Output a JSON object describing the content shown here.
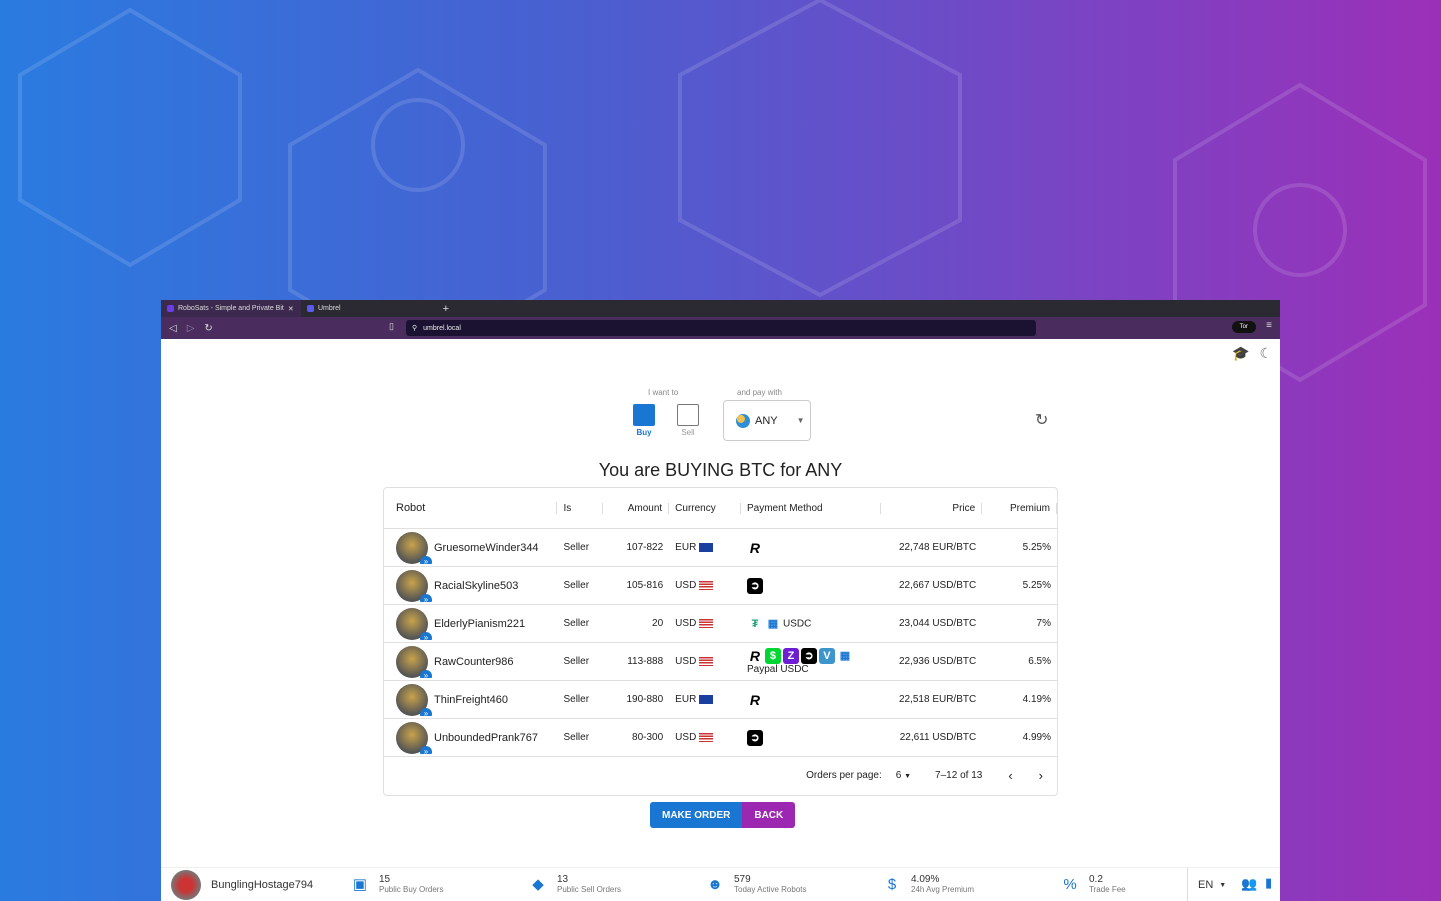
{
  "browser": {
    "tabs": [
      {
        "label": "RoboSats - Simple and Private Bit"
      },
      {
        "label": "Umbrel"
      }
    ],
    "url": "umbrel.local",
    "tor_label": "Tor"
  },
  "filters": {
    "want_label": "I want to",
    "buy_label": "Buy",
    "sell_label": "Sell",
    "pay_label": "and pay with",
    "currency": "ANY",
    "selected": "Buy"
  },
  "heading": "You are BUYING BTC for ANY",
  "table": {
    "columns": [
      "Robot",
      "Is",
      "Amount",
      "Currency",
      "Payment Method",
      "Price",
      "Premium"
    ],
    "rows": [
      {
        "robot": "GruesomeWinder344",
        "is": "Seller",
        "amount": "107-822",
        "currency": "EUR",
        "methods": [
          "Revolut"
        ],
        "method_text": "",
        "price": "22,748 EUR/BTC",
        "premium": "5.25%"
      },
      {
        "robot": "RacialSkyline503",
        "is": "Seller",
        "amount": "105-816",
        "currency": "USD",
        "methods": [
          "Strike"
        ],
        "method_text": "",
        "price": "22,667 USD/BTC",
        "premium": "5.25%"
      },
      {
        "robot": "ElderlyPianism221",
        "is": "Seller",
        "amount": "20",
        "currency": "USD",
        "methods": [
          "Tether",
          "Other"
        ],
        "method_text": "USDC",
        "price": "23,044 USD/BTC",
        "premium": "7%"
      },
      {
        "robot": "RawCounter986",
        "is": "Seller",
        "amount": "113-888",
        "currency": "USD",
        "methods": [
          "Revolut",
          "CashApp",
          "Zelle",
          "Strike",
          "Venmo",
          "Other"
        ],
        "method_text": "Paypal USDC",
        "price": "22,936 USD/BTC",
        "premium": "6.5%"
      },
      {
        "robot": "ThinFreight460",
        "is": "Seller",
        "amount": "190-880",
        "currency": "EUR",
        "methods": [
          "Revolut"
        ],
        "method_text": "",
        "price": "22,518 EUR/BTC",
        "premium": "4.19%"
      },
      {
        "robot": "UnboundedPrank767",
        "is": "Seller",
        "amount": "80-300",
        "currency": "USD",
        "methods": [
          "Strike"
        ],
        "method_text": "",
        "price": "22,611 USD/BTC",
        "premium": "4.99%"
      }
    ],
    "footer": {
      "per_page_label": "Orders per page:",
      "per_page": "6",
      "range": "7–12 of 13"
    }
  },
  "actions": {
    "make_order": "MAKE ORDER",
    "back": "BACK"
  },
  "bottom": {
    "nickname": "BunglingHostage794",
    "stats": [
      {
        "value": "15",
        "label": "Public Buy Orders",
        "icon": "inbox-icon"
      },
      {
        "value": "13",
        "label": "Public Sell Orders",
        "icon": "tag-icon"
      },
      {
        "value": "579",
        "label": "Today Active Robots",
        "icon": "robot-icon"
      },
      {
        "value": "4.09%",
        "label": "24h Avg Premium",
        "icon": "price-icon"
      },
      {
        "value": "0.2",
        "label": "Trade Fee",
        "icon": "percent-icon"
      }
    ],
    "lang": "EN"
  },
  "colors": {
    "primary": "#1976d2",
    "secondary": "#9c27b0"
  }
}
